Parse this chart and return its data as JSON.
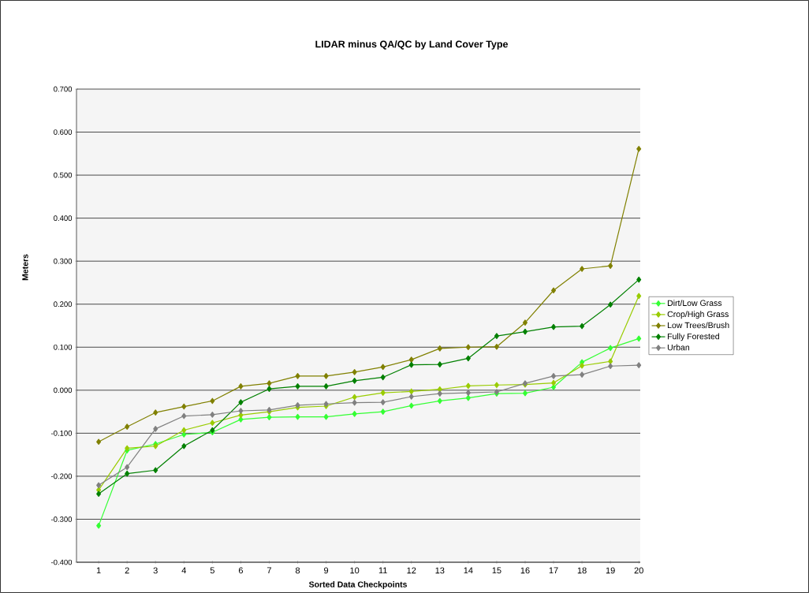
{
  "chart_data": {
    "type": "line",
    "title": "LIDAR minus QA/QC by Land Cover Type",
    "xlabel": "Sorted Data Checkpoints",
    "ylabel": "Meters",
    "categories": [
      "1",
      "2",
      "3",
      "4",
      "5",
      "6",
      "7",
      "8",
      "9",
      "10",
      "11",
      "12",
      "13",
      "14",
      "15",
      "16",
      "17",
      "18",
      "19",
      "20"
    ],
    "series": [
      {
        "name": "Dirt/Low Grass",
        "color": "#33ff33",
        "values": [
          -0.315,
          -0.14,
          -0.125,
          -0.103,
          -0.098,
          -0.068,
          -0.063,
          -0.062,
          -0.062,
          -0.055,
          -0.05,
          -0.036,
          -0.025,
          -0.018,
          -0.008,
          -0.007,
          0.007,
          0.065,
          0.098,
          0.12
        ]
      },
      {
        "name": "Crop/High Grass",
        "color": "#99cc00",
        "values": [
          -0.232,
          -0.135,
          -0.13,
          -0.093,
          -0.076,
          -0.058,
          -0.05,
          -0.04,
          -0.037,
          -0.016,
          -0.006,
          -0.003,
          0.002,
          0.01,
          0.012,
          0.013,
          0.017,
          0.057,
          0.067,
          0.219
        ]
      },
      {
        "name": "Low Trees/Brush",
        "color": "#808000",
        "values": [
          -0.12,
          -0.085,
          -0.052,
          -0.038,
          -0.025,
          0.009,
          0.016,
          0.033,
          0.033,
          0.042,
          0.054,
          0.071,
          0.097,
          0.1,
          0.101,
          0.157,
          0.232,
          0.282,
          0.289,
          0.561
        ]
      },
      {
        "name": "Fully Forested",
        "color": "#008000",
        "values": [
          -0.241,
          -0.194,
          -0.186,
          -0.13,
          -0.093,
          -0.028,
          0.003,
          0.009,
          0.009,
          0.022,
          0.03,
          0.059,
          0.06,
          0.074,
          0.126,
          0.136,
          0.147,
          0.149,
          0.199,
          0.257
        ]
      },
      {
        "name": "Urban",
        "color": "#808080",
        "values": [
          -0.221,
          -0.179,
          -0.09,
          -0.06,
          -0.057,
          -0.048,
          -0.046,
          -0.035,
          -0.032,
          -0.029,
          -0.028,
          -0.015,
          -0.008,
          -0.006,
          -0.004,
          0.016,
          0.033,
          0.036,
          0.056,
          0.058
        ]
      }
    ],
    "ylim": [
      -0.4,
      0.7
    ],
    "yticks": [
      {
        "value": -0.4,
        "label": "-0.400"
      },
      {
        "value": -0.3,
        "label": "-0.300"
      },
      {
        "value": -0.2,
        "label": "-0.200"
      },
      {
        "value": -0.1,
        "label": "-0.100"
      },
      {
        "value": 0,
        "label": "0.000"
      },
      {
        "value": 0.1,
        "label": "0.100"
      },
      {
        "value": 0.2,
        "label": "0.200"
      },
      {
        "value": 0.3,
        "label": "0.300"
      },
      {
        "value": 0.4,
        "label": "0.400"
      },
      {
        "value": 0.5,
        "label": "0.500"
      },
      {
        "value": 0.6,
        "label": "0.600"
      },
      {
        "value": 0.7,
        "label": "0.700"
      }
    ],
    "grid": "y",
    "legend": "right",
    "marker": "diamond",
    "line_style": "solid"
  }
}
